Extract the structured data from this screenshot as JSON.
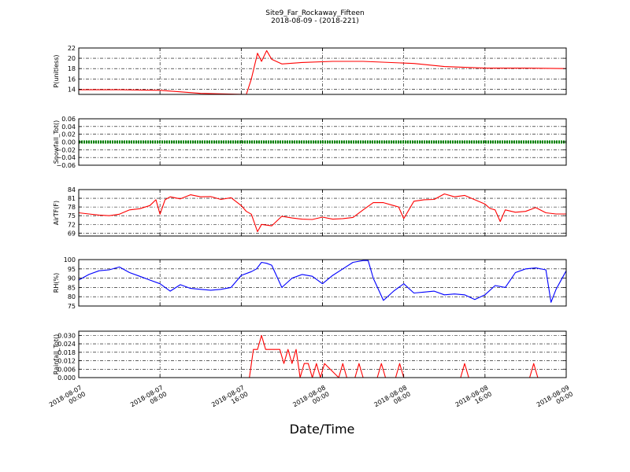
{
  "figure": {
    "title_line1": "Site9_Far_Rockaway_Fifteen",
    "title_line2": "2018-08-09 - (2018-221)",
    "xlabel": "Date/Time"
  },
  "x_axis": {
    "range": [
      "2018-08-07 00:00",
      "2018-08-09 00:00"
    ],
    "ticks": [
      {
        "t": 0,
        "line1": "2018-08-07",
        "line2": "00:00"
      },
      {
        "t": 8,
        "line1": "2018-08-07",
        "line2": "08:00"
      },
      {
        "t": 16,
        "line1": "2018-08-07",
        "line2": "16:00"
      },
      {
        "t": 24,
        "line1": "2018-08-08",
        "line2": "00:00"
      },
      {
        "t": 32,
        "line1": "2018-08-08",
        "line2": "08:00"
      },
      {
        "t": 40,
        "line1": "2018-08-08",
        "line2": "16:00"
      },
      {
        "t": 48,
        "line1": "2018-08-09",
        "line2": "00:00"
      }
    ]
  },
  "chart_data": [
    {
      "type": "line",
      "ylabel": "P(unitless)",
      "ylim": [
        13,
        22
      ],
      "yticks": [
        14,
        16,
        18,
        20,
        22
      ],
      "ytick_labels": [
        "14",
        "16",
        "18",
        "20",
        "22"
      ],
      "color": "#ff0000",
      "grid": true,
      "x_hours": [
        0,
        4,
        8,
        12,
        14,
        16.5,
        17,
        17.6,
        18,
        18.5,
        19,
        20,
        22,
        25,
        28,
        33,
        36,
        40,
        44,
        48
      ],
      "values": [
        13.9,
        13.9,
        13.8,
        13.2,
        13.1,
        13.0,
        16,
        21.0,
        19.4,
        21.5,
        19.8,
        18.9,
        19.2,
        19.4,
        19.4,
        19.0,
        18.4,
        18.1,
        18.1,
        18.0
      ]
    },
    {
      "type": "line",
      "ylabel": "Snowfall_Tot()",
      "ylim": [
        -0.06,
        0.06
      ],
      "yticks": [
        -0.06,
        -0.04,
        -0.02,
        0.0,
        0.02,
        0.04,
        0.06
      ],
      "ytick_labels": [
        "−0.06",
        "−0.04",
        "−0.02",
        "0.00",
        "0.02",
        "0.04",
        "0.06"
      ],
      "color": "#008000",
      "grid": true,
      "x_hours": [
        0,
        48
      ],
      "values": [
        0,
        0
      ]
    },
    {
      "type": "line",
      "ylabel": "AirTF(F)",
      "ylim": [
        68,
        84
      ],
      "yticks": [
        69,
        72,
        75,
        78,
        81,
        84
      ],
      "ytick_labels": [
        "69",
        "72",
        "75",
        "78",
        "81",
        "84"
      ],
      "color": "#ff0000",
      "grid": true,
      "x_hours": [
        0,
        1,
        2,
        3,
        4,
        5,
        6,
        7,
        7.6,
        8,
        8.5,
        9,
        10,
        11,
        12,
        13,
        14,
        15,
        16,
        16.5,
        17,
        17.6,
        18,
        19,
        20,
        21,
        22,
        23,
        24,
        25,
        26,
        27,
        28,
        29,
        30,
        31,
        31.5,
        32,
        33,
        34,
        35,
        36,
        37,
        38,
        39,
        40,
        40.5,
        41,
        41.5,
        42,
        43,
        44,
        45,
        46,
        47,
        48
      ],
      "values": [
        76,
        75.6,
        75.2,
        75.0,
        75.5,
        77,
        77.4,
        78.5,
        80.5,
        75.5,
        80.5,
        81.5,
        80.8,
        82.2,
        81.5,
        81.6,
        80.6,
        81.2,
        78.5,
        76.5,
        75.5,
        69.5,
        72,
        71.5,
        74.8,
        74.2,
        73.8,
        73.7,
        74.5,
        73.8,
        74,
        74.4,
        77,
        79.5,
        79.5,
        78.5,
        78,
        74,
        80,
        80.5,
        80.6,
        82.5,
        81.5,
        82,
        80.5,
        79,
        77.5,
        77,
        73,
        77,
        76.2,
        76.5,
        77.8,
        76,
        75.6,
        75.6
      ]
    },
    {
      "type": "line",
      "ylabel": "RH(%)",
      "ylim": [
        75,
        100
      ],
      "yticks": [
        75,
        80,
        85,
        90,
        95,
        100
      ],
      "ytick_labels": [
        "75",
        "80",
        "85",
        "90",
        "95",
        "100"
      ],
      "color": "#0000ff",
      "grid": true,
      "x_hours": [
        0,
        1,
        2,
        3,
        4,
        5,
        6,
        7,
        8,
        9,
        10,
        11,
        12,
        13,
        14,
        15,
        16,
        17,
        17.5,
        18,
        18.5,
        19,
        20,
        21,
        22,
        23,
        24,
        25,
        26,
        27,
        28,
        28.5,
        29,
        30,
        31,
        32,
        33,
        34,
        35,
        36,
        37,
        38,
        39,
        40,
        41,
        42,
        43,
        44,
        45,
        46,
        46.5,
        47,
        48
      ],
      "values": [
        89,
        92,
        94,
        94.5,
        96,
        93,
        91,
        89,
        87,
        83,
        86.5,
        84.5,
        84,
        83.5,
        84,
        85,
        91.5,
        93.5,
        95,
        98.5,
        98,
        97,
        85,
        90,
        92,
        91,
        87,
        91.5,
        95,
        98.5,
        99.5,
        99.5,
        90,
        78,
        83,
        87,
        82,
        82.5,
        83,
        81,
        81.5,
        81,
        78.5,
        81,
        86,
        85,
        93,
        95,
        95.5,
        94.5,
        77,
        84,
        94
      ]
    },
    {
      "type": "line",
      "ylabel": "Rainfall_Tot()",
      "ylim": [
        0,
        0.033
      ],
      "yticks": [
        0,
        0.006,
        0.012,
        0.018,
        0.024,
        0.03
      ],
      "ytick_labels": [
        "0.000",
        "0.006",
        "0.012",
        "0.018",
        "0.024",
        "0.030"
      ],
      "color": "#ff0000",
      "grid": true,
      "x_hours": [
        0,
        16.8,
        17.2,
        17.6,
        18.0,
        18.4,
        19.8,
        20.2,
        20.6,
        21.0,
        21.4,
        21.8,
        22.2,
        22.6,
        23.0,
        23.4,
        23.8,
        24.2,
        25.6,
        26.0,
        26.4,
        27.2,
        27.6,
        28.0,
        29.4,
        29.8,
        30.2,
        31.2,
        31.6,
        32.0,
        37.6,
        38.0,
        38.4,
        44.4,
        44.8,
        45.2,
        48
      ],
      "values": [
        0,
        0,
        0.02,
        0.02,
        0.03,
        0.02,
        0.02,
        0.01,
        0.02,
        0.01,
        0.02,
        0,
        0.01,
        0.01,
        0,
        0.01,
        0,
        0.01,
        0,
        0.01,
        0,
        0,
        0.01,
        0,
        0,
        0.01,
        0,
        0,
        0.01,
        0,
        0,
        0.01,
        0,
        0,
        0.01,
        0,
        0
      ]
    }
  ]
}
